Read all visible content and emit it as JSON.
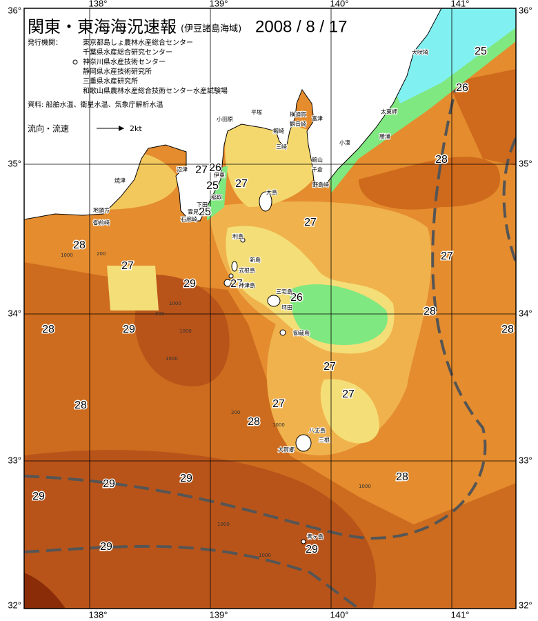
{
  "title": "関東・東海海況速報",
  "region": "(伊豆諸島海域)",
  "date": "2008 / 8 / 17",
  "issuers_label": "発行機関：",
  "issuers": [
    "東京都島しょ農林水産総合センター",
    "千葉県水産総合研究センター",
    "神奈川県水産技術センター",
    "静岡県水産技術研究所",
    "三重県水産研究所",
    "和歌山県農林水産総合技術センター水産試験場"
  ],
  "sources": "資料: 船舶水温、衛星水温、気象庁解析水温",
  "legend": {
    "label": "流向・流速",
    "speed": "2kt"
  },
  "longitudes": [
    "138°",
    "139°",
    "140°",
    "141°"
  ],
  "latitudes": [
    "36°",
    "35°",
    "34°",
    "33°",
    "32°"
  ],
  "temperature_labels": [
    "25",
    "26",
    "28",
    "27",
    "26",
    "25",
    "27",
    "25",
    "27",
    "28",
    "27",
    "27",
    "29",
    "27",
    "26",
    "28",
    "28",
    "29",
    "28",
    "27",
    "27",
    "27",
    "28",
    "28",
    "28",
    "29",
    "29",
    "29",
    "29",
    "29"
  ],
  "depth_labels": [
    "1000",
    "200",
    "1000",
    "200",
    "1000",
    "200",
    "1000",
    "1000",
    "1000",
    "1000",
    "1000"
  ],
  "place_names": [
    "犬吠埼",
    "太東岬",
    "勝浦",
    "小湊",
    "千倉",
    "野島崎",
    "館山",
    "富津",
    "横須賀",
    "観音崎",
    "剱崎",
    "三崎",
    "平塚",
    "小田原",
    "大島",
    "沼津",
    "伊東",
    "稲取",
    "下田",
    "雲見",
    "石廊崎",
    "焼津",
    "地頭方",
    "御前崎",
    "利島",
    "新島",
    "式根島",
    "神津島",
    "三宅島",
    "坪田",
    "御蔵島",
    "八丈島",
    "大賀郷",
    "三根",
    "青ヶ島"
  ]
}
